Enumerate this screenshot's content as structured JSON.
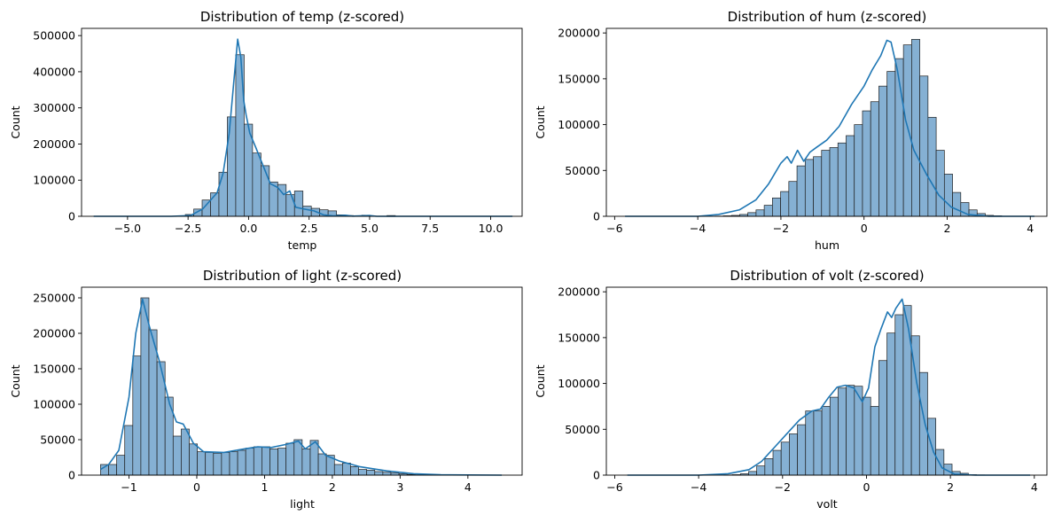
{
  "colors": {
    "bar_fill": "#85b0d3",
    "bar_edge": "#1f1f1f",
    "kde_line": "#1f77b4",
    "axes": "#000000"
  },
  "chart_data": [
    {
      "type": "histogram",
      "title": "Distribution of temp (z-scored)",
      "xlabel": "temp",
      "ylabel": "Count",
      "xlim": [
        -6.9,
        11.3
      ],
      "ylim": [
        0,
        520000
      ],
      "xticks": [
        -5.0,
        -2.5,
        0.0,
        2.5,
        5.0,
        7.5,
        10.0
      ],
      "xtick_labels": [
        "−5.0",
        "−2.5",
        "0.0",
        "2.5",
        "5.0",
        "7.5",
        "10.0"
      ],
      "yticks": [
        0,
        100000,
        200000,
        300000,
        400000,
        500000
      ],
      "bins": {
        "start": -6.43,
        "width": 0.347,
        "values": [
          0,
          0,
          0,
          0,
          0,
          0,
          0,
          0,
          0,
          0,
          0,
          5000,
          20000,
          45000,
          65000,
          122000,
          275000,
          447000,
          255000,
          175000,
          140000,
          95000,
          88000,
          60000,
          70000,
          28000,
          22000,
          18000,
          15000,
          4000,
          2000,
          500,
          3000,
          200,
          200,
          2000,
          100,
          200,
          0,
          0,
          0,
          0,
          0,
          0,
          0,
          0,
          0,
          0,
          0,
          0
        ]
      },
      "kde": {
        "x": [
          -6.4,
          -3.2,
          -2.4,
          -1.9,
          -1.5,
          -1.3,
          -1.05,
          -0.8,
          -0.6,
          -0.45,
          -0.32,
          -0.2,
          -0.1,
          0.05,
          0.3,
          0.6,
          0.9,
          1.2,
          1.45,
          1.7,
          1.95,
          2.3,
          2.7,
          3.1,
          3.5,
          4.0,
          4.3,
          5.0,
          5.3,
          6.0,
          8.0,
          10.9
        ],
        "y": [
          0,
          0,
          2000,
          20000,
          50000,
          65000,
          120000,
          230000,
          380000,
          490000,
          440000,
          320000,
          280000,
          230000,
          190000,
          140000,
          90000,
          80000,
          60000,
          70000,
          25000,
          20000,
          15000,
          4000,
          1000,
          3000,
          500,
          2000,
          0,
          0,
          0,
          0
        ]
      }
    },
    {
      "type": "histogram",
      "title": "Distribution of hum (z-scored)",
      "xlabel": "hum",
      "ylabel": "Count",
      "xlim": [
        -6.2,
        4.4
      ],
      "ylim": [
        0,
        205000
      ],
      "xticks": [
        -6,
        -4,
        -2,
        0,
        2,
        4
      ],
      "xtick_labels": [
        "−6",
        "−4",
        "−2",
        "0",
        "2",
        "4"
      ],
      "yticks": [
        0,
        50000,
        100000,
        150000,
        200000
      ],
      "bins": {
        "start": -5.75,
        "width": 0.197,
        "values": [
          0,
          0,
          0,
          0,
          0,
          0,
          0,
          0,
          0,
          0,
          0,
          200,
          500,
          1000,
          2000,
          4000,
          7000,
          12000,
          20000,
          27000,
          38000,
          55000,
          62000,
          65000,
          72000,
          75000,
          80000,
          88000,
          100000,
          115000,
          125000,
          142000,
          158000,
          172000,
          187000,
          193000,
          153000,
          108000,
          72000,
          46000,
          26000,
          15000,
          7000,
          3000,
          1000,
          500,
          0,
          0,
          0,
          0
        ]
      },
      "kde": {
        "x": [
          -5.75,
          -4,
          -3.5,
          -3,
          -2.6,
          -2.3,
          -2.0,
          -1.85,
          -1.75,
          -1.6,
          -1.45,
          -1.3,
          -1.15,
          -0.9,
          -0.6,
          -0.3,
          0,
          0.2,
          0.4,
          0.55,
          0.65,
          0.8,
          1.0,
          1.2,
          1.5,
          1.8,
          2.1,
          2.5,
          3.0,
          4.1
        ],
        "y": [
          0,
          0,
          2000,
          7000,
          18000,
          35000,
          58000,
          65000,
          58000,
          72000,
          60000,
          70000,
          75000,
          83000,
          98000,
          122000,
          142000,
          160000,
          175000,
          192000,
          190000,
          160000,
          105000,
          72000,
          46000,
          23000,
          10000,
          2000,
          0,
          0
        ]
      }
    },
    {
      "type": "histogram",
      "title": "Distribution of light (z-scored)",
      "xlabel": "light",
      "ylabel": "Count",
      "xlim": [
        -1.7,
        4.8
      ],
      "ylim": [
        0,
        265000
      ],
      "xticks": [
        -1,
        0,
        1,
        2,
        3,
        4
      ],
      "xtick_labels": [
        "−1",
        "0",
        "1",
        "2",
        "3",
        "4"
      ],
      "yticks": [
        0,
        50000,
        100000,
        150000,
        200000,
        250000
      ],
      "bins": {
        "start": -1.42,
        "width": 0.119,
        "values": [
          15000,
          15000,
          28000,
          70000,
          168000,
          250000,
          205000,
          160000,
          110000,
          55000,
          65000,
          44000,
          33000,
          32000,
          31000,
          32000,
          33000,
          35000,
          38000,
          40000,
          40000,
          37000,
          38000,
          45000,
          50000,
          37000,
          49000,
          30000,
          28000,
          15000,
          17000,
          12000,
          8000,
          7000,
          5000,
          4000,
          3000,
          2000,
          1000,
          500,
          500,
          300,
          200,
          100,
          100,
          50,
          50,
          0,
          0,
          0
        ]
      },
      "kde": {
        "x": [
          -1.42,
          -1.3,
          -1.15,
          -1.0,
          -0.9,
          -0.8,
          -0.7,
          -0.55,
          -0.4,
          -0.3,
          -0.2,
          -0.05,
          0.1,
          0.4,
          0.7,
          0.9,
          1.1,
          1.3,
          1.5,
          1.6,
          1.75,
          1.9,
          2.1,
          2.4,
          2.8,
          3.2,
          3.6,
          4.5
        ],
        "y": [
          8000,
          15000,
          35000,
          110000,
          200000,
          248000,
          210000,
          160000,
          100000,
          75000,
          72000,
          45000,
          33000,
          32000,
          37000,
          40000,
          39000,
          43000,
          48000,
          37000,
          47000,
          28000,
          20000,
          12000,
          6000,
          2000,
          500,
          0
        ]
      }
    },
    {
      "type": "histogram",
      "title": "Distribution of volt (z-scored)",
      "xlabel": "volt",
      "ylabel": "Count",
      "xlim": [
        -6.2,
        4.3
      ],
      "ylim": [
        0,
        205000
      ],
      "xticks": [
        -6,
        -4,
        -2,
        0,
        2,
        4
      ],
      "xtick_labels": [
        "−6",
        "−4",
        "−2",
        "0",
        "2",
        "4"
      ],
      "yticks": [
        0,
        50000,
        100000,
        150000,
        200000
      ],
      "bins": {
        "start": -5.72,
        "width": 0.194,
        "values": [
          0,
          0,
          0,
          0,
          0,
          0,
          0,
          0,
          0,
          0,
          0,
          0,
          200,
          500,
          1500,
          4000,
          10000,
          18000,
          27000,
          36000,
          45000,
          55000,
          70000,
          70000,
          75000,
          85000,
          95000,
          98000,
          97000,
          85000,
          75000,
          125000,
          155000,
          175000,
          185000,
          152000,
          112000,
          62000,
          28000,
          12000,
          4000,
          2000,
          500,
          200,
          0,
          0,
          0,
          0,
          0,
          0
        ]
      },
      "kde": {
        "x": [
          -5.7,
          -4,
          -3.3,
          -2.8,
          -2.5,
          -2.2,
          -1.9,
          -1.6,
          -1.3,
          -1.1,
          -0.9,
          -0.7,
          -0.5,
          -0.3,
          -0.1,
          0.05,
          0.2,
          0.35,
          0.5,
          0.6,
          0.7,
          0.85,
          1.0,
          1.2,
          1.4,
          1.6,
          1.8,
          2.1,
          2.6,
          3.9
        ],
        "y": [
          0,
          0,
          1500,
          6000,
          15000,
          30000,
          45000,
          60000,
          70000,
          72000,
          85000,
          96000,
          98000,
          95000,
          80000,
          95000,
          140000,
          160000,
          178000,
          172000,
          182000,
          192000,
          160000,
          100000,
          55000,
          25000,
          8000,
          1000,
          0,
          0
        ]
      }
    }
  ]
}
